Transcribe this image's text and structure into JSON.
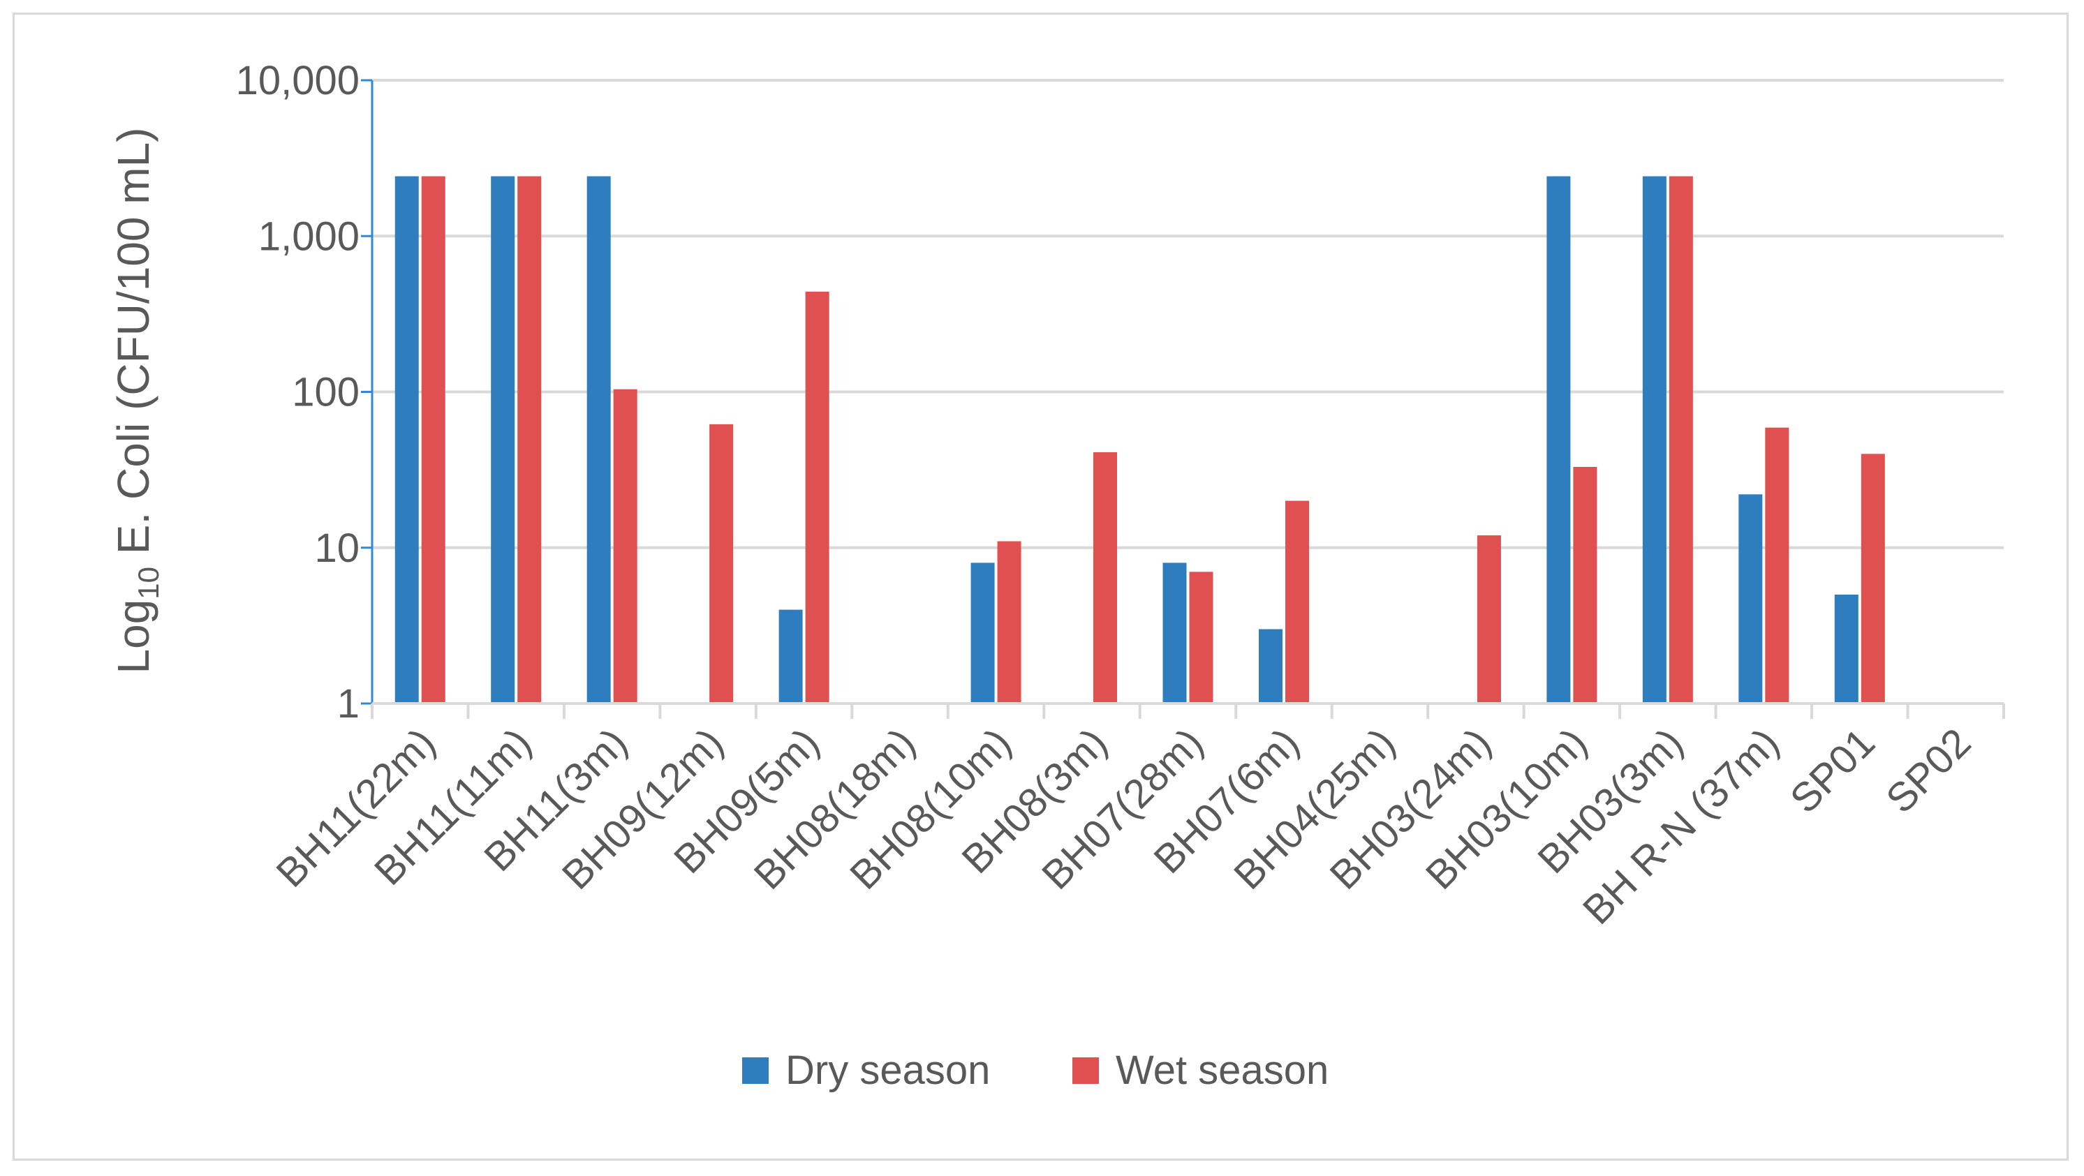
{
  "chart_data": {
    "type": "bar",
    "scale": "log10",
    "title": "",
    "ylabel": {
      "prefix": "Log",
      "subscript": "10",
      "suffix": " E. Coli (CFU/100 mL)"
    },
    "xlabel": "",
    "ylim": [
      1,
      10000
    ],
    "ytick_values": [
      1,
      10,
      100,
      1000,
      10000
    ],
    "ytick_labels": [
      "1",
      "10",
      "100",
      "1,000",
      "10,000"
    ],
    "grid": true,
    "legend_position": "bottom",
    "categories": [
      "BH11(22m)",
      "BH11(11m)",
      "BH11(3m)",
      "BH09(12m)",
      "BH09(5m)",
      "BH08(18m)",
      "BH08(10m)",
      "BH08(3m)",
      "BH07(28m)",
      "BH07(6m)",
      "BH04(25m)",
      "BH03(24m)",
      "BH03(10m)",
      "BH03(3m)",
      "BH R-N (37m)",
      "SP01",
      "SP02"
    ],
    "series": [
      {
        "name": "Dry season",
        "color": "#2e7ebf",
        "values": [
          2420,
          2420,
          2420,
          null,
          4,
          null,
          8,
          null,
          8,
          3,
          null,
          null,
          2420,
          2420,
          22,
          5,
          null
        ]
      },
      {
        "name": "Wet season",
        "color": "#e05050",
        "values": [
          2420,
          2420,
          104,
          62,
          440,
          null,
          11,
          41,
          7,
          20,
          null,
          12,
          33,
          2420,
          59,
          40,
          null
        ]
      }
    ]
  },
  "colors": {
    "axis": "#2e8ad8",
    "grid": "#d9d9d9",
    "text": "#595959"
  }
}
